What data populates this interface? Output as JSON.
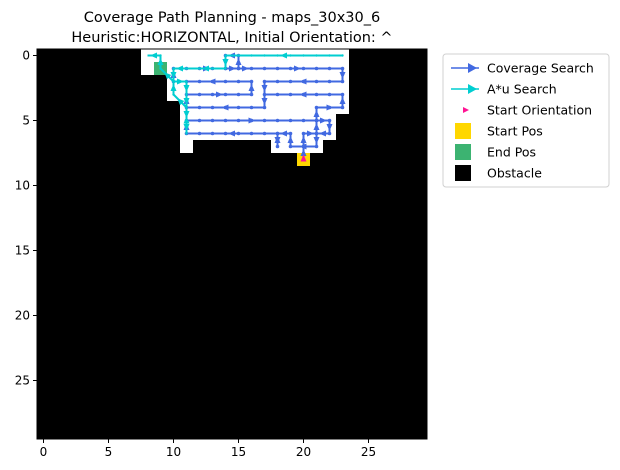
{
  "chart_data": {
    "type": "heatmap",
    "title_line1": "Coverage Path Planning - maps_30x30_6",
    "title_line2": "Heuristic:HORIZONTAL, Initial Orientation: ^",
    "xlabel": "",
    "ylabel": "",
    "grid": false,
    "legend_placement": "outside-upper-right",
    "xlim": [
      -0.5,
      29.5
    ],
    "ylim": [
      29.5,
      -0.5
    ],
    "x_ticks": [
      0,
      5,
      10,
      15,
      20,
      25
    ],
    "y_ticks": [
      0,
      5,
      10,
      15,
      20,
      25
    ],
    "colors": {
      "obstacle": "#000000",
      "free": "#ffffff",
      "coverage": "#4169e1",
      "astar": "#00ced1",
      "start_orientation": "#ff1493",
      "start_pos": "#ffd700",
      "end_pos": "#3cb371"
    },
    "free_rows": [
      {
        "y": 0,
        "x0": 8,
        "x1": 23
      },
      {
        "y": 1,
        "x0": 8,
        "x1": 23
      },
      {
        "y": 2,
        "x0": 10,
        "x1": 23
      },
      {
        "y": 3,
        "x0": 10,
        "x1": 23
      },
      {
        "y": 4,
        "x0": 11,
        "x1": 23
      },
      {
        "y": 5,
        "x0": 11,
        "x1": 22
      },
      {
        "y": 6,
        "x0": 11,
        "x1": 22
      },
      {
        "y": 7,
        "x0": 11,
        "x1": 11
      },
      {
        "y": 7,
        "x0": 18,
        "x1": 21
      }
    ],
    "start_pos": [
      20,
      8
    ],
    "end_pos": [
      9,
      1
    ],
    "start_orientation": {
      "x": 20,
      "y": 8,
      "direction": "^"
    },
    "coverage_path": [
      [
        20,
        8
      ],
      [
        20,
        7
      ],
      [
        20,
        6
      ],
      [
        21,
        6
      ],
      [
        21,
        5
      ],
      [
        22,
        5
      ],
      [
        22,
        6
      ],
      [
        21,
        6
      ],
      [
        21,
        7
      ],
      [
        19,
        7
      ],
      [
        19,
        6
      ],
      [
        18,
        6
      ],
      [
        18,
        7
      ],
      [
        18,
        6
      ],
      [
        11,
        6
      ],
      [
        11,
        5
      ],
      [
        21,
        5
      ],
      [
        21,
        4
      ],
      [
        23,
        4
      ],
      [
        23,
        3
      ],
      [
        17,
        3
      ],
      [
        17,
        4
      ],
      [
        11,
        4
      ],
      [
        11,
        3
      ],
      [
        16,
        3
      ],
      [
        16,
        2
      ],
      [
        10,
        2
      ],
      [
        10,
        1
      ],
      [
        15,
        1
      ],
      [
        15,
        0
      ],
      [
        14,
        0
      ],
      [
        14,
        1
      ],
      [
        15,
        1
      ],
      [
        16,
        1
      ],
      [
        23,
        1
      ],
      [
        23,
        2
      ],
      [
        17,
        2
      ],
      [
        17,
        3
      ]
    ],
    "astar_path": [
      [
        23,
        0
      ],
      [
        14,
        0
      ],
      [
        14,
        1
      ],
      [
        11,
        1
      ],
      [
        10,
        1
      ],
      [
        10,
        2
      ],
      [
        11,
        2
      ],
      [
        11,
        3
      ],
      [
        11,
        4
      ],
      [
        11,
        5
      ],
      [
        11,
        6
      ],
      [
        11,
        4
      ],
      [
        10,
        3
      ],
      [
        10,
        2
      ],
      [
        9,
        1
      ],
      [
        9,
        0
      ],
      [
        8,
        0
      ]
    ],
    "legend": [
      {
        "label": "Coverage Search",
        "kind": "line-arrow",
        "color_key": "coverage"
      },
      {
        "label": "A*u Search",
        "kind": "line-arrow",
        "color_key": "astar"
      },
      {
        "label": "Start Orientation",
        "kind": "small-arrow",
        "color_key": "start_orientation"
      },
      {
        "label": "Start Pos",
        "kind": "square",
        "color_key": "start_pos"
      },
      {
        "label": "End Pos",
        "kind": "square",
        "color_key": "end_pos"
      },
      {
        "label": "Obstacle",
        "kind": "square",
        "color_key": "obstacle"
      }
    ]
  }
}
